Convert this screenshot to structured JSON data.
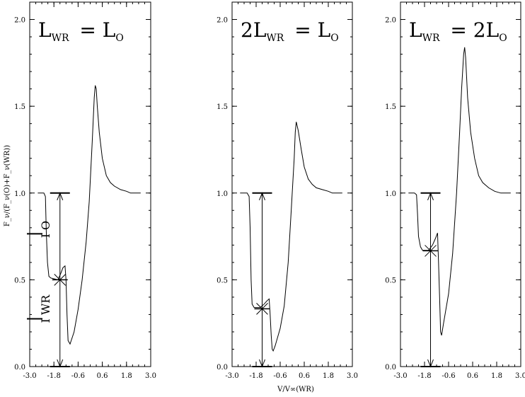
{
  "chart_data": [
    {
      "type": "line",
      "title": "L_WR = L_O",
      "title_parts": {
        "lead": "",
        "mid": "= ",
        "rhs_coef": ""
      },
      "xlim": [
        -3.0,
        3.0
      ],
      "ylim": [
        0.0,
        2.1
      ],
      "xticks": [
        "-3.0",
        "-1.8",
        "-0.6",
        "0.6",
        "1.8",
        "3.0"
      ],
      "yticks": [
        "0.0",
        "0.5",
        "1.0",
        "1.5",
        "2.0"
      ],
      "ylabel": "F_ν/(F_ν(O)+F_ν(WR))",
      "xlabel": "",
      "series": [
        {
          "x": [
            -2.6,
            -2.3,
            -2.22,
            -2.18,
            -2.12,
            -2.05,
            -1.95,
            -1.6,
            -1.45,
            -1.35,
            -1.25,
            -1.2,
            -1.15,
            -1.1,
            -1.0,
            -0.8,
            -0.6,
            -0.4,
            -0.2,
            -0.05,
            0.1,
            0.2,
            0.25,
            0.3,
            0.35,
            0.45,
            0.6,
            0.8,
            1.0,
            1.2,
            1.5,
            1.8,
            2.0,
            2.2,
            2.5
          ],
          "y": [
            1.0,
            1.0,
            0.98,
            0.78,
            0.6,
            0.52,
            0.51,
            0.5,
            0.54,
            0.57,
            0.58,
            0.5,
            0.3,
            0.15,
            0.13,
            0.2,
            0.33,
            0.5,
            0.72,
            0.95,
            1.3,
            1.55,
            1.62,
            1.6,
            1.5,
            1.35,
            1.2,
            1.1,
            1.06,
            1.04,
            1.02,
            1.01,
            1.0,
            1.0,
            1.0
          ]
        }
      ],
      "markers": {
        "vline_x": -1.5,
        "top": 1.0,
        "bottom": 0.0,
        "star_y": 0.5
      },
      "side_labels": {
        "upper": "I_O",
        "upper_y": 0.765,
        "lower": "I_WR",
        "lower_y": 0.275
      }
    },
    {
      "type": "line",
      "title": "2L_WR = L_O",
      "title_parts": {
        "lead": "2",
        "mid": "= ",
        "rhs_coef": ""
      },
      "xlim": [
        -3.0,
        3.0
      ],
      "ylim": [
        0.0,
        2.1
      ],
      "xticks": [
        "-3.0",
        "-1.8",
        "-0.6",
        "0.6",
        "1.8",
        "3.0"
      ],
      "yticks": [
        "0.0",
        "0.5",
        "1.0",
        "1.5",
        "2.0"
      ],
      "ylabel": "",
      "xlabel": "V/V∞(WR)",
      "series": [
        {
          "x": [
            -2.6,
            -2.25,
            -2.15,
            -2.1,
            -2.05,
            -2.0,
            -1.9,
            -1.6,
            -1.4,
            -1.25,
            -1.15,
            -1.1,
            -1.05,
            -1.0,
            -0.95,
            -0.85,
            -0.6,
            -0.4,
            -0.2,
            -0.05,
            0.1,
            0.15,
            0.2,
            0.3,
            0.45,
            0.6,
            0.8,
            1.0,
            1.2,
            1.5,
            1.8,
            2.0,
            2.2,
            2.5
          ],
          "y": [
            1.0,
            1.0,
            0.98,
            0.8,
            0.5,
            0.36,
            0.34,
            0.34,
            0.36,
            0.38,
            0.39,
            0.3,
            0.18,
            0.1,
            0.09,
            0.12,
            0.22,
            0.35,
            0.6,
            0.9,
            1.2,
            1.35,
            1.41,
            1.36,
            1.25,
            1.15,
            1.08,
            1.05,
            1.03,
            1.02,
            1.01,
            1.0,
            1.0,
            1.0
          ]
        }
      ],
      "markers": {
        "vline_x": -1.5,
        "top": 1.0,
        "bottom": 0.0,
        "star_y": 0.333
      },
      "side_labels": null
    },
    {
      "type": "line",
      "title": "L_WR = 2L_O",
      "title_parts": {
        "lead": "",
        "mid": "= ",
        "rhs_coef": "2"
      },
      "xlim": [
        -3.0,
        3.0
      ],
      "ylim": [
        0.0,
        2.1
      ],
      "xticks": [
        "-3.0",
        "-1.8",
        "-0.6",
        "0.6",
        "1.8",
        "3.0"
      ],
      "yticks": [
        "0.0",
        "0.5",
        "1.0",
        "1.5",
        "2.0"
      ],
      "ylabel": "",
      "xlabel": "",
      "series": [
        {
          "x": [
            -2.6,
            -2.3,
            -2.2,
            -2.15,
            -2.1,
            -2.0,
            -1.9,
            -1.6,
            -1.4,
            -1.25,
            -1.15,
            -1.1,
            -1.05,
            -1.0,
            -0.95,
            -0.85,
            -0.6,
            -0.4,
            -0.2,
            -0.05,
            0.05,
            0.15,
            0.2,
            0.25,
            0.35,
            0.5,
            0.7,
            0.9,
            1.1,
            1.4,
            1.7,
            2.0,
            2.2,
            2.5
          ],
          "y": [
            1.0,
            1.0,
            0.99,
            0.88,
            0.75,
            0.69,
            0.67,
            0.67,
            0.7,
            0.74,
            0.77,
            0.6,
            0.4,
            0.2,
            0.18,
            0.25,
            0.42,
            0.65,
            1.0,
            1.35,
            1.6,
            1.8,
            1.84,
            1.78,
            1.55,
            1.35,
            1.2,
            1.1,
            1.06,
            1.03,
            1.01,
            1.0,
            1.0,
            1.0
          ]
        }
      ],
      "markers": {
        "vline_x": -1.5,
        "top": 1.0,
        "bottom": 0.0,
        "star_y": 0.667
      },
      "side_labels": null
    }
  ]
}
